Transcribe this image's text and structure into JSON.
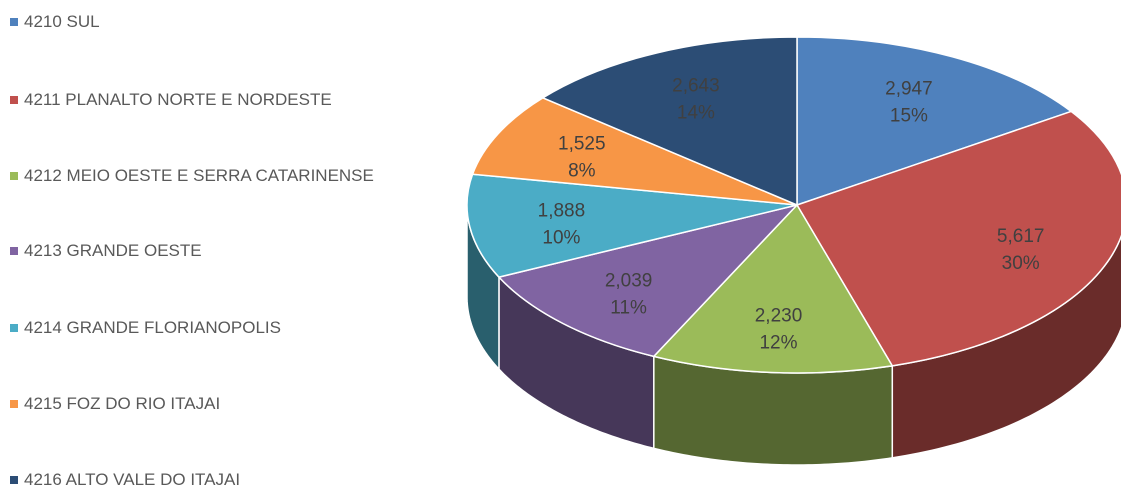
{
  "chart_data": {
    "type": "pie",
    "style": "3d",
    "legend_position": "left",
    "slices": [
      {
        "label": "4210 SUL",
        "value": 2947,
        "value_text": "2,947",
        "percent_text": "15%",
        "color": "#4F81BD"
      },
      {
        "label": "4211 PLANALTO NORTE E NORDESTE",
        "value": 5617,
        "value_text": "5,617",
        "percent_text": "30%",
        "color": "#C0504D"
      },
      {
        "label": "4212 MEIO OESTE E SERRA CATARINENSE",
        "value": 2230,
        "value_text": "2,230",
        "percent_text": "12%",
        "color": "#9BBB59"
      },
      {
        "label": "4213 GRANDE OESTE",
        "value": 2039,
        "value_text": "2,039",
        "percent_text": "11%",
        "color": "#8064A2"
      },
      {
        "label": "4214 GRANDE FLORIANOPOLIS",
        "value": 1888,
        "value_text": "1,888",
        "percent_text": "10%",
        "color": "#4BACC6"
      },
      {
        "label": "4215 FOZ DO RIO ITAJAI",
        "value": 1525,
        "value_text": "1,525",
        "percent_text": "8%",
        "color": "#F79646"
      },
      {
        "label": "4216 ALTO VALE DO ITAJAI",
        "value": 2643,
        "value_text": "2,643",
        "percent_text": "14%",
        "color": "#2C4D75"
      }
    ]
  }
}
